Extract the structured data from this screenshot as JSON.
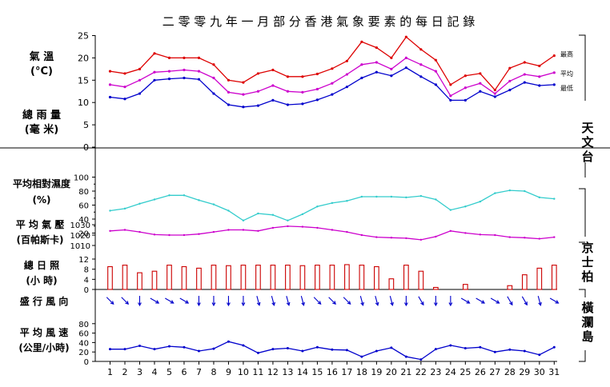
{
  "title": "二 零 零 九 年 一 月 部 分 香 港 氣 象 要 素 的 每 日 記 錄",
  "stations": [
    "天文台",
    "京士柏",
    "橫瀾島"
  ],
  "days": [
    "1",
    "2",
    "3",
    "4",
    "5",
    "6",
    "7",
    "8",
    "9",
    "10",
    "11",
    "12",
    "13",
    "14",
    "15",
    "16",
    "17",
    "18",
    "19",
    "20",
    "21",
    "22",
    "23",
    "24",
    "25",
    "26",
    "27",
    "28",
    "29",
    "30",
    "31"
  ],
  "colors": {
    "max": "#dd0000",
    "mean": "#cc00cc",
    "min": "#0000cc",
    "humidity": "#33cccc",
    "pressure": "#cc00cc",
    "sunshine": "#cc0000",
    "wind_dir": "#0000cc",
    "wind_speed": "#0000cc"
  },
  "chart_data": [
    {
      "type": "line",
      "id": "temperature",
      "label_line1": "氣 溫",
      "label_line2": "(°C)",
      "ylim": [
        0,
        25
      ],
      "ticks": [
        "0",
        "5",
        "10",
        "15",
        "20",
        "25"
      ],
      "categories": [
        "1",
        "2",
        "3",
        "4",
        "5",
        "6",
        "7",
        "8",
        "9",
        "10",
        "11",
        "12",
        "13",
        "14",
        "15",
        "16",
        "17",
        "18",
        "19",
        "20",
        "21",
        "22",
        "23",
        "24",
        "25",
        "26",
        "27",
        "28",
        "29",
        "30",
        "31"
      ],
      "series": [
        {
          "name": "最高",
          "values": [
            17,
            16.5,
            17.5,
            21,
            20,
            20,
            20,
            18.5,
            15,
            14.5,
            16.5,
            17.3,
            15.8,
            15.8,
            16.4,
            17.6,
            19.3,
            23.6,
            22.3,
            20,
            24.7,
            21.9,
            19.5,
            14,
            16,
            16.5,
            12.8,
            17.7,
            19,
            18.2,
            20.5
          ]
        },
        {
          "name": "平均",
          "values": [
            14,
            13.5,
            15,
            16.8,
            17,
            17.3,
            17,
            15.5,
            12.3,
            11.8,
            12.5,
            13.8,
            12.5,
            12.3,
            13,
            14.3,
            16.3,
            18.5,
            19,
            17.5,
            20,
            18.5,
            17,
            11.5,
            13.3,
            14.3,
            12,
            14.8,
            16.3,
            15.8,
            16.7
          ]
        },
        {
          "name": "最低",
          "values": [
            11.2,
            10.8,
            12,
            15,
            15.3,
            15.5,
            15.2,
            12,
            9.5,
            9,
            9.3,
            10.5,
            9.5,
            9.7,
            10.6,
            11.8,
            13.5,
            15.5,
            16.8,
            16,
            17.8,
            15.8,
            14,
            10.5,
            10.5,
            12.5,
            11.3,
            12.8,
            14.5,
            13.8,
            14
          ]
        }
      ]
    },
    {
      "type": "bar",
      "id": "rainfall",
      "label_line1": "總 雨 量",
      "label_line2": "(毫 米)",
      "ticks": [],
      "categories": [
        "1",
        "2",
        "3",
        "4",
        "5",
        "6",
        "7",
        "8",
        "9",
        "10",
        "11",
        "12",
        "13",
        "14",
        "15",
        "16",
        "17",
        "18",
        "19",
        "20",
        "21",
        "22",
        "23",
        "24",
        "25",
        "26",
        "27",
        "28",
        "29",
        "30",
        "31"
      ],
      "values": [
        0,
        0,
        0,
        0,
        0,
        0,
        0,
        0,
        0,
        0,
        0,
        0,
        0,
        0,
        0,
        0,
        0,
        0,
        0,
        0,
        0,
        0,
        0,
        0,
        0,
        0,
        0,
        0,
        0,
        0,
        0
      ]
    },
    {
      "type": "line",
      "id": "humidity",
      "label_line1": "平均相對濕度",
      "label_line2": "(%)",
      "ylim": [
        0,
        100
      ],
      "ticks": [
        "20",
        "40",
        "60",
        "80",
        "100"
      ],
      "categories": [
        "1",
        "2",
        "3",
        "4",
        "5",
        "6",
        "7",
        "8",
        "9",
        "10",
        "11",
        "12",
        "13",
        "14",
        "15",
        "16",
        "17",
        "18",
        "19",
        "20",
        "21",
        "22",
        "23",
        "24",
        "25",
        "26",
        "27",
        "28",
        "29",
        "30",
        "31"
      ],
      "values": [
        52,
        55,
        62,
        68,
        74,
        74,
        67,
        61,
        52,
        38,
        48,
        46,
        38,
        47,
        58,
        63,
        66,
        72,
        72,
        72,
        71,
        73,
        68,
        53,
        58,
        65,
        77,
        81,
        80,
        71,
        69
      ]
    },
    {
      "type": "line",
      "id": "pressure",
      "label_line1": "平 均 氣 壓",
      "label_line2": "(百帕斯卡)",
      "ylim": [
        1010,
        1030
      ],
      "ticks": [
        "1010",
        "1020",
        "1030"
      ],
      "categories": [
        "1",
        "2",
        "3",
        "4",
        "5",
        "6",
        "7",
        "8",
        "9",
        "10",
        "11",
        "12",
        "13",
        "14",
        "15",
        "16",
        "17",
        "18",
        "19",
        "20",
        "21",
        "22",
        "23",
        "24",
        "25",
        "26",
        "27",
        "28",
        "29",
        "30",
        "31"
      ],
      "values": [
        1024,
        1025,
        1023,
        1020.5,
        1020,
        1020,
        1021,
        1023,
        1025,
        1025,
        1024,
        1027,
        1028.5,
        1028,
        1027,
        1025,
        1023,
        1020,
        1018,
        1017.5,
        1017,
        1015.5,
        1018.5,
        1024,
        1022,
        1020.5,
        1020,
        1018,
        1017.5,
        1016.5,
        1018
      ]
    },
    {
      "type": "bar",
      "id": "sunshine",
      "label_line1": "總 日 照",
      "label_line2": "(小 時)",
      "ylim": [
        0,
        12
      ],
      "ticks": [
        "0",
        "4",
        "8",
        "12"
      ],
      "categories": [
        "1",
        "2",
        "3",
        "4",
        "5",
        "6",
        "7",
        "8",
        "9",
        "10",
        "11",
        "12",
        "13",
        "14",
        "15",
        "16",
        "17",
        "18",
        "19",
        "20",
        "21",
        "22",
        "23",
        "24",
        "25",
        "26",
        "27",
        "28",
        "29",
        "30",
        "31"
      ],
      "values": [
        9,
        9.6,
        6.6,
        7.2,
        9.6,
        9,
        8.4,
        9.6,
        9.4,
        9.6,
        9.6,
        9.6,
        9.6,
        9.4,
        9.6,
        9.6,
        9.8,
        9.6,
        9,
        4.2,
        9.6,
        7.2,
        0.8,
        0,
        2,
        0,
        0,
        1.5,
        5.8,
        8.4,
        9.6
      ]
    },
    {
      "type": "scatter",
      "id": "wind_direction",
      "label_line1": "盛 行 風 向",
      "categories": [
        "1",
        "2",
        "3",
        "4",
        "5",
        "6",
        "7",
        "8",
        "9",
        "10",
        "11",
        "12",
        "13",
        "14",
        "15",
        "16",
        "17",
        "18",
        "19",
        "20",
        "21",
        "22",
        "23",
        "24",
        "25",
        "26",
        "27",
        "28",
        "29",
        "30",
        "31"
      ],
      "values": [
        315,
        315,
        0,
        300,
        300,
        300,
        0,
        0,
        0,
        0,
        345,
        345,
        345,
        345,
        315,
        315,
        315,
        345,
        345,
        345,
        0,
        330,
        0,
        0,
        300,
        300,
        300,
        330,
        330,
        345,
        300
      ]
    },
    {
      "type": "line",
      "id": "wind_speed",
      "label_line1": "平 均 風 速",
      "label_line2": "(公里/小時)",
      "ylim": [
        0,
        100
      ],
      "ticks": [
        "0",
        "20",
        "40",
        "60",
        "80"
      ],
      "categories": [
        "1",
        "2",
        "3",
        "4",
        "5",
        "6",
        "7",
        "8",
        "9",
        "10",
        "11",
        "12",
        "13",
        "14",
        "15",
        "16",
        "17",
        "18",
        "19",
        "20",
        "21",
        "22",
        "23",
        "24",
        "25",
        "26",
        "27",
        "28",
        "29",
        "30",
        "31"
      ],
      "values": [
        26,
        26,
        33,
        26,
        32,
        30,
        22,
        27,
        42,
        34,
        18,
        26,
        28,
        22,
        30,
        25,
        24,
        10,
        22,
        29,
        10,
        4,
        26,
        34,
        28,
        30,
        20,
        25,
        22,
        14,
        30
      ]
    }
  ]
}
